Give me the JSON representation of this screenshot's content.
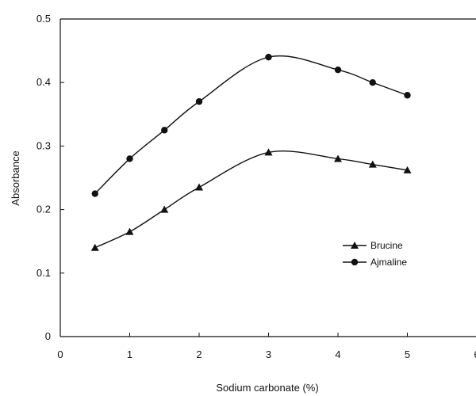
{
  "chart_data": {
    "type": "line",
    "xlabel": "Sodium carbonate (%)",
    "ylabel": "Absorbance",
    "xlim": [
      0,
      6
    ],
    "ylim": [
      0,
      0.5
    ],
    "x_ticks": [
      0,
      1,
      2,
      3,
      4,
      5,
      6
    ],
    "x_tick_labels": [
      "0",
      "1",
      "2",
      "3",
      "4",
      "5",
      "6"
    ],
    "y_ticks": [
      0,
      0.1,
      0.2,
      0.3,
      0.4,
      0.5
    ],
    "y_tick_labels": [
      "0",
      "0.1",
      "0.2",
      "0.3",
      "0.4",
      "0.5"
    ],
    "grid": false,
    "legend_position": "center-right",
    "series": [
      {
        "name": "Brucine",
        "marker": "triangle",
        "color": "#111111",
        "x": [
          0.5,
          1,
          1.5,
          2,
          3,
          4,
          4.5,
          5
        ],
        "y": [
          0.14,
          0.165,
          0.2,
          0.235,
          0.29,
          0.28,
          0.271,
          0.262
        ]
      },
      {
        "name": "Ajmaline",
        "marker": "circle",
        "color": "#111111",
        "x": [
          0.5,
          1,
          1.5,
          2,
          3,
          4,
          4.5,
          5
        ],
        "y": [
          0.225,
          0.28,
          0.325,
          0.37,
          0.44,
          0.42,
          0.4,
          0.38
        ]
      }
    ]
  }
}
